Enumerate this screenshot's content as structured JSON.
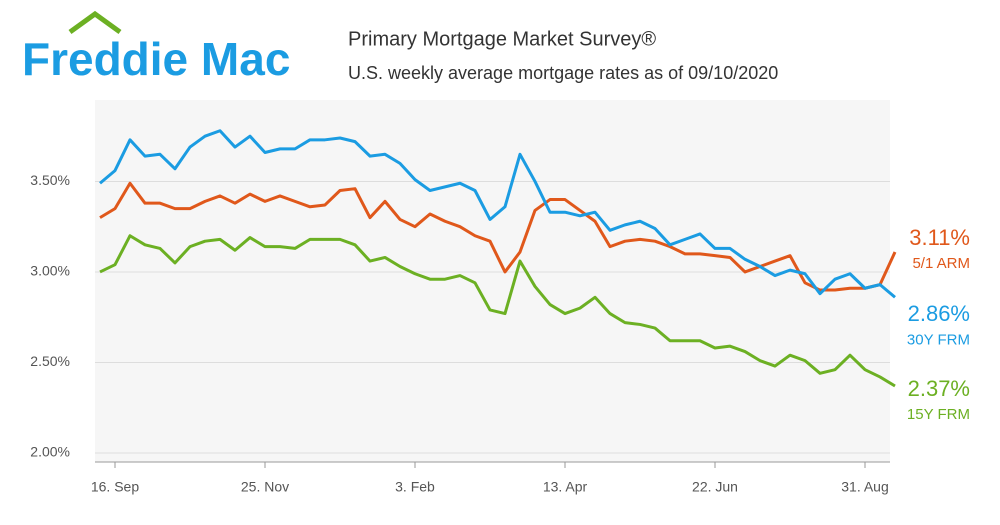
{
  "brand": "Freddie Mac",
  "chart_data": {
    "type": "line",
    "title": "Primary Mortgage Market Survey®",
    "subtitle": "U.S. weekly average mortgage rates as of 09/10/2020",
    "categories": [
      null,
      "16. Sep",
      null,
      null,
      null,
      null,
      null,
      null,
      null,
      null,
      null,
      "25. Nov",
      null,
      null,
      null,
      null,
      null,
      null,
      null,
      null,
      null,
      "3. Feb",
      null,
      null,
      null,
      null,
      null,
      null,
      null,
      null,
      null,
      "13. Apr",
      null,
      null,
      null,
      null,
      null,
      null,
      null,
      null,
      null,
      "22. Jun",
      null,
      null,
      null,
      null,
      null,
      null,
      null,
      null,
      null,
      "31. Aug",
      null,
      null
    ],
    "ylim": [
      1.95,
      3.95
    ],
    "yticks": [
      {
        "value": 2.0,
        "label": "2.00%"
      },
      {
        "value": 2.5,
        "label": "2.50%"
      },
      {
        "value": 3.0,
        "label": "3.00%"
      },
      {
        "value": 3.5,
        "label": "3.50%"
      }
    ],
    "grid": true,
    "series": [
      {
        "name": "5/1 ARM",
        "color": "#e0581b",
        "values": [
          3.3,
          3.35,
          3.49,
          3.38,
          3.38,
          3.35,
          3.35,
          3.39,
          3.42,
          3.38,
          3.43,
          3.39,
          3.42,
          3.39,
          3.36,
          3.37,
          3.45,
          3.46,
          3.3,
          3.39,
          3.29,
          3.25,
          3.32,
          3.28,
          3.25,
          3.2,
          3.17,
          3.0,
          3.11,
          3.34,
          3.4,
          3.4,
          3.34,
          3.28,
          3.14,
          3.17,
          3.18,
          3.17,
          3.14,
          3.1,
          3.1,
          3.09,
          3.08,
          3.0,
          3.03,
          3.06,
          3.09,
          2.94,
          2.9,
          2.9,
          2.91,
          2.91,
          2.93,
          3.11
        ],
        "value_labels": [
          null,
          null,
          null,
          null,
          null,
          null,
          null,
          null,
          null,
          null,
          null,
          null,
          null,
          null,
          null,
          null,
          null,
          null,
          null,
          null,
          null,
          null,
          null,
          null,
          null,
          null,
          null,
          null,
          null,
          null,
          null,
          null,
          null,
          null,
          null,
          null,
          null,
          null,
          null,
          null,
          null,
          null,
          null,
          null,
          null,
          null,
          null,
          null,
          null,
          null,
          null,
          null,
          null,
          "3.11%"
        ]
      },
      {
        "name": "30Y FRM",
        "color": "#1b9ce2",
        "values": [
          3.49,
          3.56,
          3.73,
          3.64,
          3.65,
          3.57,
          3.69,
          3.75,
          3.78,
          3.69,
          3.75,
          3.66,
          3.68,
          3.68,
          3.73,
          3.73,
          3.74,
          3.72,
          3.64,
          3.65,
          3.6,
          3.51,
          3.45,
          3.47,
          3.49,
          3.45,
          3.29,
          3.36,
          3.65,
          3.5,
          3.33,
          3.33,
          3.31,
          3.33,
          3.23,
          3.26,
          3.28,
          3.24,
          3.15,
          3.18,
          3.21,
          3.13,
          3.13,
          3.07,
          3.03,
          2.98,
          3.01,
          2.99,
          2.88,
          2.96,
          2.99,
          2.91,
          2.93,
          2.86
        ],
        "value_labels": [
          null,
          null,
          null,
          null,
          null,
          null,
          null,
          null,
          null,
          null,
          null,
          null,
          null,
          null,
          null,
          null,
          null,
          null,
          null,
          null,
          null,
          null,
          null,
          null,
          null,
          null,
          null,
          null,
          null,
          null,
          null,
          null,
          null,
          null,
          null,
          null,
          null,
          null,
          null,
          null,
          null,
          null,
          null,
          null,
          null,
          null,
          null,
          null,
          null,
          null,
          null,
          null,
          null,
          "2.86%"
        ]
      },
      {
        "name": "15Y FRM",
        "color": "#6cb023",
        "values": [
          3.0,
          3.04,
          3.2,
          3.15,
          3.13,
          3.05,
          3.14,
          3.17,
          3.18,
          3.12,
          3.19,
          3.14,
          3.14,
          3.13,
          3.18,
          3.18,
          3.18,
          3.15,
          3.06,
          3.08,
          3.03,
          2.99,
          2.96,
          2.96,
          2.98,
          2.94,
          2.79,
          2.77,
          3.06,
          2.92,
          2.82,
          2.77,
          2.8,
          2.86,
          2.77,
          2.72,
          2.71,
          2.69,
          2.62,
          2.62,
          2.62,
          2.58,
          2.59,
          2.56,
          2.51,
          2.48,
          2.54,
          2.51,
          2.44,
          2.46,
          2.54,
          2.46,
          2.42,
          2.37
        ],
        "value_labels": [
          null,
          null,
          null,
          null,
          null,
          null,
          null,
          null,
          null,
          null,
          null,
          null,
          null,
          null,
          null,
          null,
          null,
          null,
          null,
          null,
          null,
          null,
          null,
          null,
          null,
          null,
          null,
          null,
          null,
          null,
          null,
          null,
          null,
          null,
          null,
          null,
          null,
          null,
          null,
          null,
          null,
          null,
          null,
          null,
          null,
          null,
          null,
          null,
          null,
          null,
          null,
          null,
          null,
          "2.37%"
        ]
      }
    ]
  }
}
